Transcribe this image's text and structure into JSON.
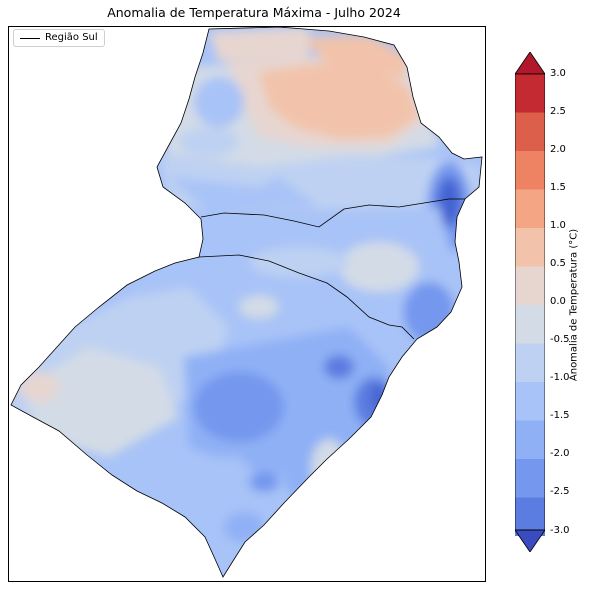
{
  "title": "Anomalia de Temperatura Máxima - Julho 2024",
  "legend": {
    "label": "Região Sul",
    "line_color": "#000000"
  },
  "colorbar": {
    "label": "Anomalia de Temperatura (°C)",
    "ticks": [
      "3.0",
      "2.5",
      "2.0",
      "1.5",
      "1.0",
      "0.5",
      "0.0",
      "-0.5",
      "-1.0",
      "-1.5",
      "-2.0",
      "-2.5",
      "-3.0"
    ],
    "colors_top_to_bottom": [
      "#c42a32",
      "#dc5f4b",
      "#ed8362",
      "#f4a584",
      "#f2c3aa",
      "#e7d6d0",
      "#d3dbe6",
      "#bed1f2",
      "#a8c3f7",
      "#8fb0f5",
      "#7597ee",
      "#5b7ce0",
      "#4463d2"
    ],
    "over_color": "#b2182b",
    "under_color": "#3a4cc0"
  },
  "map": {
    "region": "Região Sul",
    "colors": {
      "neutral": "#d3dbe6",
      "warm1": "#e7d6d0",
      "warm2": "#f2c3aa",
      "warm3": "#f4a584",
      "cool1": "#bed1f2",
      "cool2": "#a8c3f7",
      "cool3": "#8fb0f5",
      "cool4": "#7597ee",
      "cool5": "#5b7ce0",
      "cool6": "#4463d2"
    }
  }
}
